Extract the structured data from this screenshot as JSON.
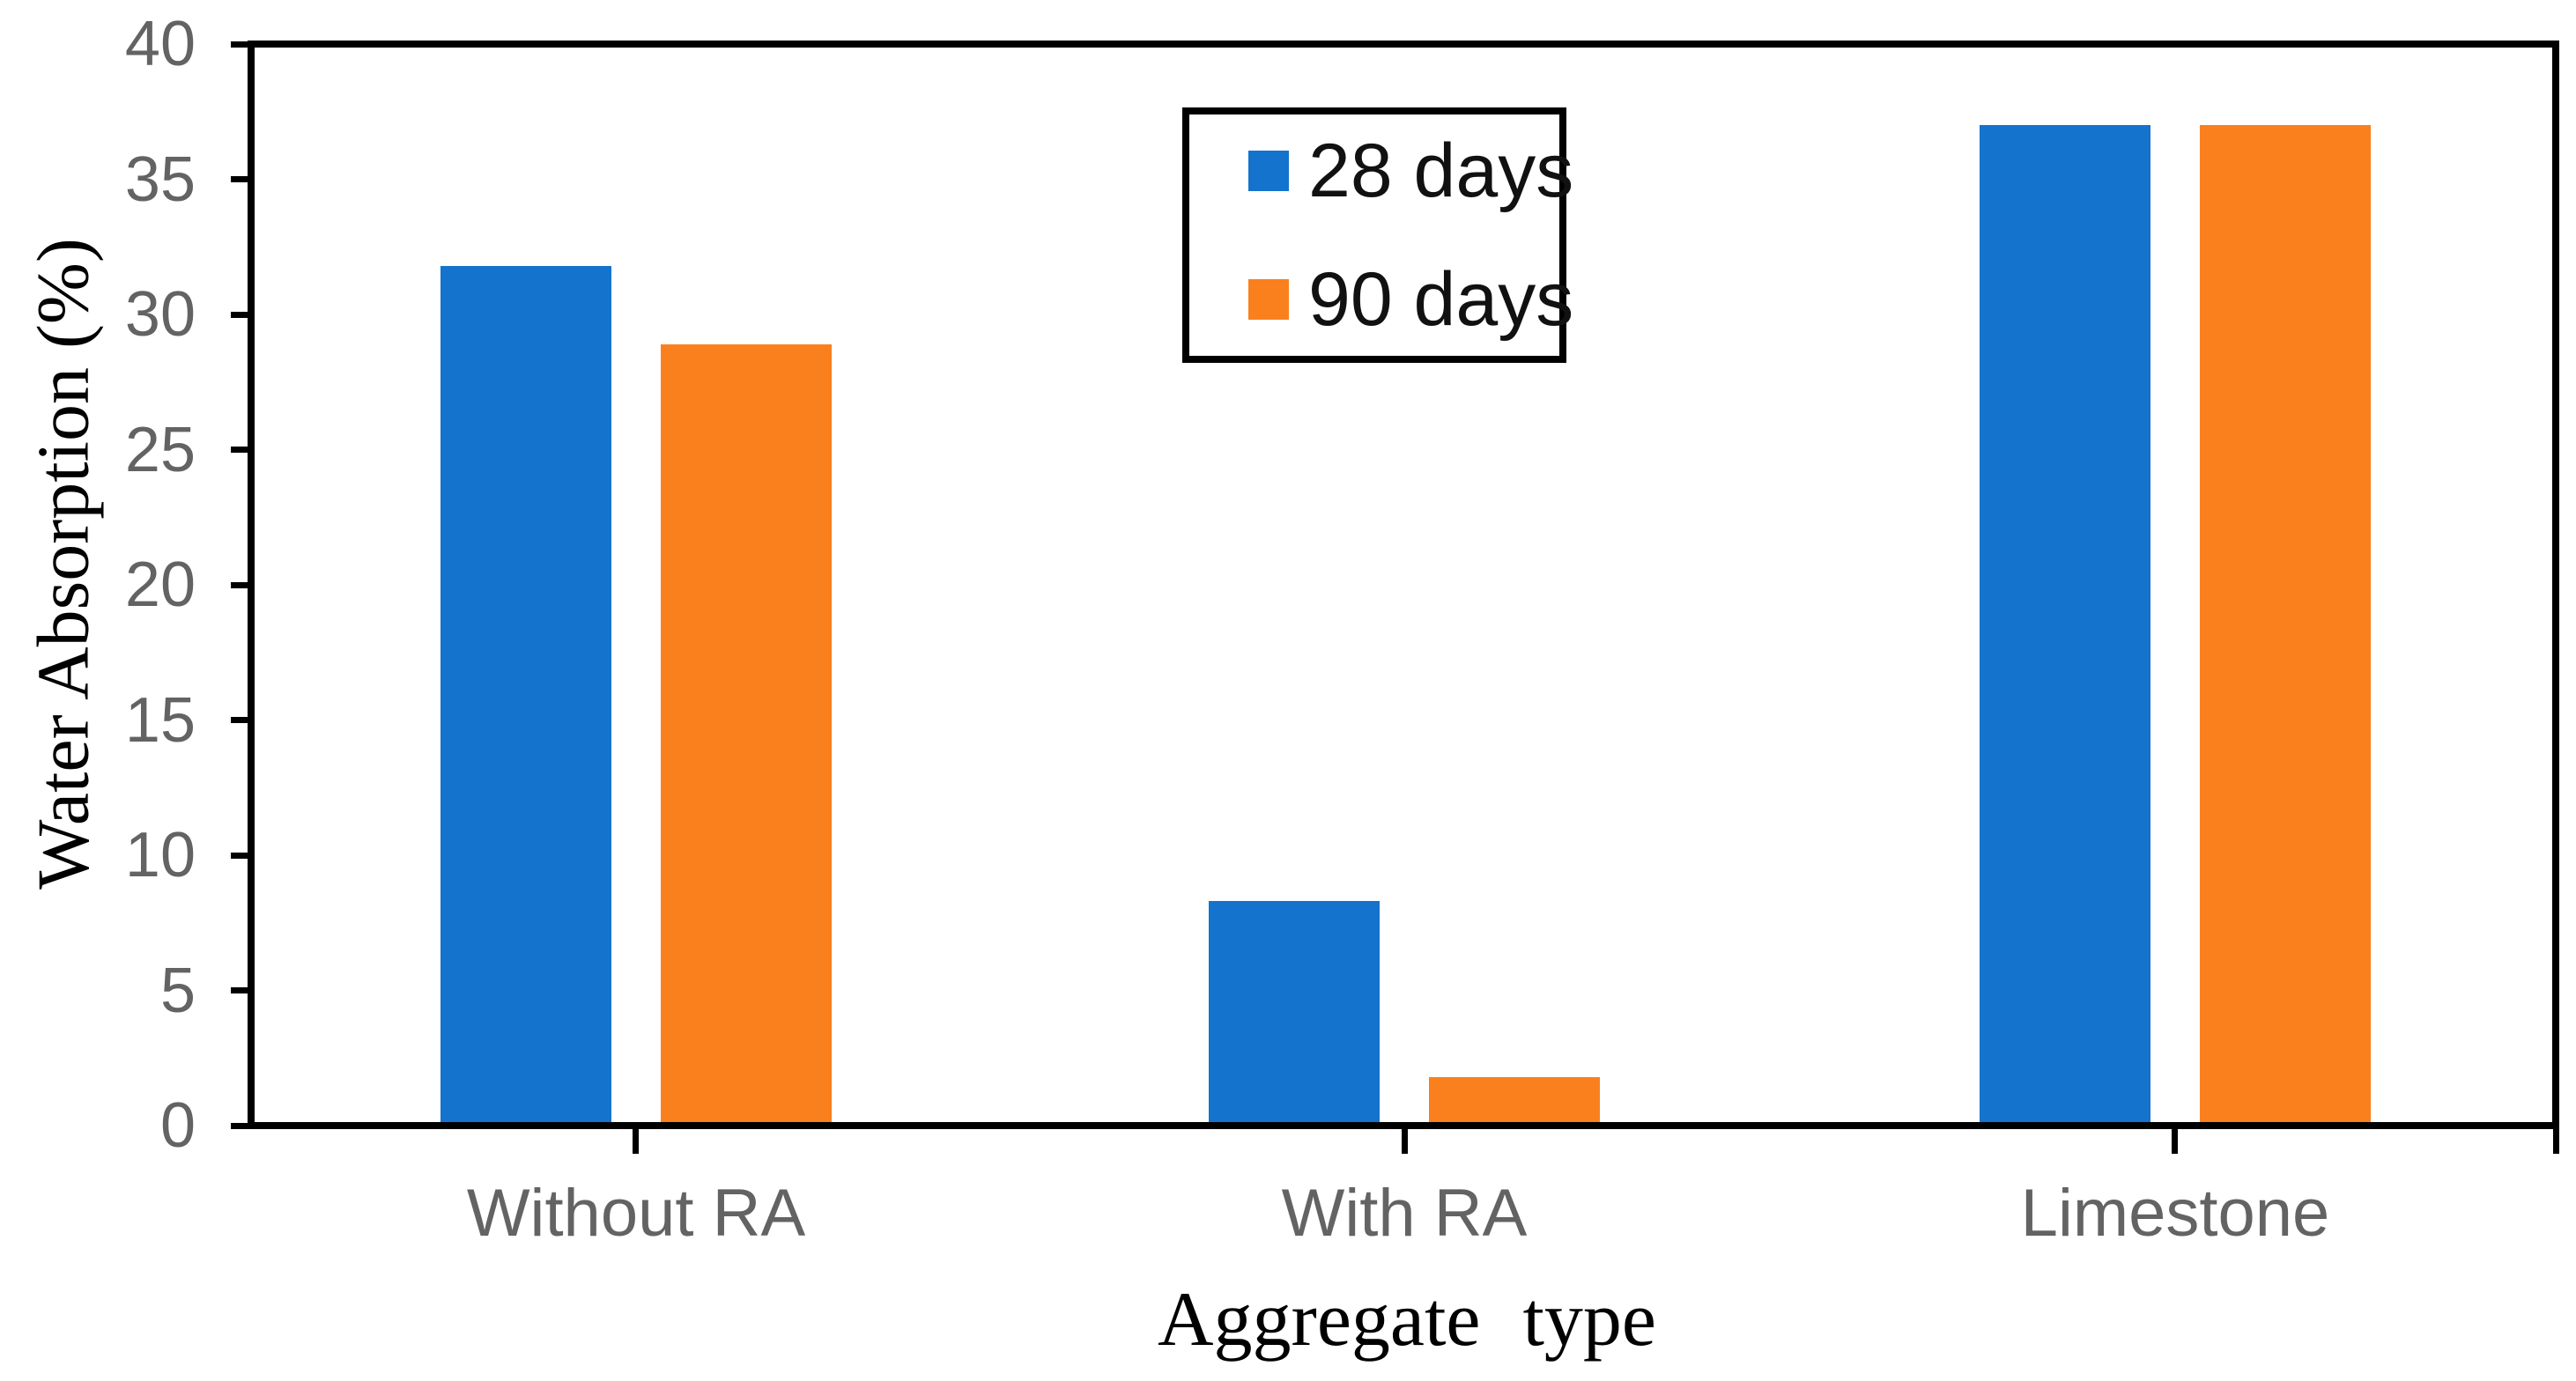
{
  "chart_data": {
    "type": "bar",
    "title": "",
    "categories": [
      "Without RA",
      "With RA",
      "Limestone"
    ],
    "series": [
      {
        "name": "28 days",
        "color": "#1473CD",
        "values": [
          31.8,
          8.3,
          37
        ]
      },
      {
        "name": "90 days",
        "color": "#FA801E",
        "values": [
          28.9,
          1.8,
          37
        ]
      }
    ],
    "xlabel": "Aggregate type",
    "ylabel": "Water Absorption (%)",
    "ylim": [
      0,
      40
    ],
    "yticks": [
      0,
      5,
      10,
      15,
      20,
      25,
      30,
      35,
      40
    ],
    "grid": false,
    "legend_position": "inside-top-center",
    "colors": {
      "axis": "#000000",
      "tick_labels": "#636363",
      "category_labels": "#636363",
      "axis_titles": "#000000",
      "legend_text": "#111111",
      "background": "#ffffff"
    }
  }
}
